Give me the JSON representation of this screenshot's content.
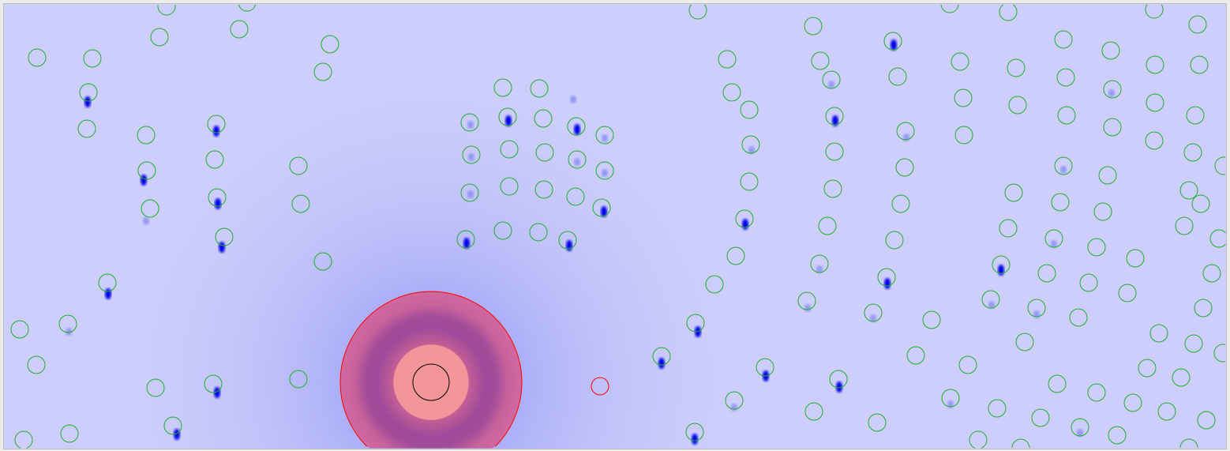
{
  "viewer": {
    "background_color": "#cdcefb",
    "halo_color": "#8f94f5",
    "spot_color": "#0000e6",
    "prediction_circle_color": "#1fae2c",
    "beamstop_outline_color": "#ff0000",
    "beamstop_fill_color": "#cc6aa0",
    "beamstop_ring_color": "#a04a9a",
    "beamstop_core_color": "#f39599",
    "beam_center_marker_color": "#000000",
    "selected_marker_color": "#ff0000"
  }
}
